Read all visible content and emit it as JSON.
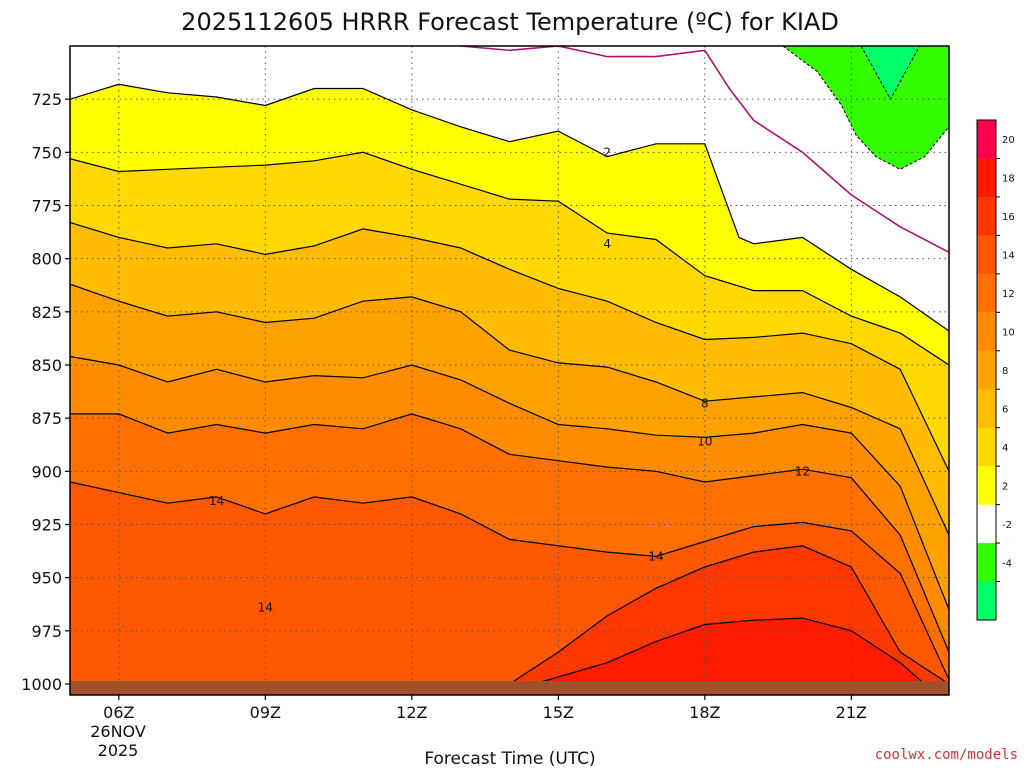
{
  "title": "2025112605 HRRR Forecast Temperature (ºC) for KIAD",
  "credit": "coolwx.com/models",
  "chart_data": {
    "type": "contour",
    "xlabel": "Forecast Time (UTC)",
    "x_date_label": [
      "26NOV",
      "2025"
    ],
    "x_ticks": [
      "06Z",
      "09Z",
      "12Z",
      "15Z",
      "18Z",
      "21Z"
    ],
    "x_hours": [
      6,
      9,
      12,
      15,
      18,
      21
    ],
    "x_range": [
      5,
      23
    ],
    "y_ticks": [
      725,
      750,
      775,
      800,
      825,
      850,
      875,
      900,
      925,
      950,
      975,
      1000
    ],
    "y_range": [
      1003,
      700
    ],
    "grid": true,
    "colorbar": {
      "labels": [
        "20",
        "18",
        "16",
        "14",
        "12",
        "10",
        "8",
        "6",
        "4",
        "2",
        "-2",
        "-4"
      ],
      "colors": [
        "#ff0050",
        "#ff1a00",
        "#ff3800",
        "#ff5800",
        "#ff7000",
        "#ff8c00",
        "#ffa200",
        "#ffbb00",
        "#ffd800",
        "#ffff00",
        "#ffffff",
        "#33ff00",
        "#00ff66"
      ]
    },
    "contour_labels": [
      {
        "text": "2",
        "hour": 16,
        "p": 750
      },
      {
        "text": "4",
        "hour": 16,
        "p": 793
      },
      {
        "text": "8",
        "hour": 18,
        "p": 868
      },
      {
        "text": "10",
        "hour": 18,
        "p": 886
      },
      {
        "text": "12",
        "hour": 20,
        "p": 900
      },
      {
        "text": "14",
        "hour": 8,
        "p": 914
      },
      {
        "text": "14",
        "hour": 17,
        "p": 940
      },
      {
        "text": "14",
        "hour": 9,
        "p": 964
      }
    ],
    "bands": [
      {
        "value": 18,
        "color": "#ff1a00",
        "boundary": [
          [
            14.5,
            1000
          ],
          [
            16,
            990
          ],
          [
            17,
            980
          ],
          [
            18,
            972
          ],
          [
            19,
            970
          ],
          [
            20,
            969
          ],
          [
            21,
            975
          ],
          [
            22,
            990
          ],
          [
            22.5,
            1000
          ]
        ]
      },
      {
        "value": 16,
        "color": "#ff3800",
        "boundary": [
          [
            14,
            1000
          ],
          [
            15,
            985
          ],
          [
            16,
            968
          ],
          [
            17,
            955
          ],
          [
            18,
            945
          ],
          [
            19,
            938
          ],
          [
            20,
            935
          ],
          [
            21,
            945
          ],
          [
            22,
            985
          ],
          [
            23,
            1000
          ]
        ]
      },
      {
        "value": 14,
        "color": "#ff5800",
        "boundary": [
          [
            5,
            905
          ],
          [
            6,
            910
          ],
          [
            7,
            915
          ],
          [
            8,
            912
          ],
          [
            9,
            920
          ],
          [
            10,
            912
          ],
          [
            11,
            915
          ],
          [
            12,
            912
          ],
          [
            13,
            920
          ],
          [
            14,
            932
          ],
          [
            15,
            935
          ],
          [
            16,
            938
          ],
          [
            17,
            940
          ],
          [
            18,
            933
          ],
          [
            19,
            926
          ],
          [
            20,
            924
          ],
          [
            21,
            928
          ],
          [
            22,
            948
          ],
          [
            23,
            998
          ]
        ]
      },
      {
        "value": 12,
        "color": "#ff7000",
        "boundary": [
          [
            5,
            873
          ],
          [
            6,
            873
          ],
          [
            7,
            882
          ],
          [
            8,
            878
          ],
          [
            9,
            882
          ],
          [
            10,
            878
          ],
          [
            11,
            880
          ],
          [
            12,
            873
          ],
          [
            13,
            880
          ],
          [
            14,
            892
          ],
          [
            15,
            895
          ],
          [
            16,
            898
          ],
          [
            17,
            900
          ],
          [
            18,
            905
          ],
          [
            19,
            902
          ],
          [
            20,
            899
          ],
          [
            21,
            903
          ],
          [
            22,
            930
          ],
          [
            23,
            985
          ]
        ]
      },
      {
        "value": 10,
        "color": "#ff8c00",
        "boundary": [
          [
            5,
            846
          ],
          [
            6,
            850
          ],
          [
            7,
            858
          ],
          [
            8,
            852
          ],
          [
            9,
            858
          ],
          [
            10,
            855
          ],
          [
            11,
            856
          ],
          [
            12,
            850
          ],
          [
            13,
            857
          ],
          [
            14,
            868
          ],
          [
            15,
            878
          ],
          [
            16,
            880
          ],
          [
            17,
            883
          ],
          [
            18,
            884
          ],
          [
            19,
            882
          ],
          [
            20,
            878
          ],
          [
            21,
            882
          ],
          [
            22,
            907
          ],
          [
            23,
            965
          ]
        ]
      },
      {
        "value": 8,
        "color": "#ffa200",
        "boundary": [
          [
            5,
            812
          ],
          [
            6,
            820
          ],
          [
            7,
            827
          ],
          [
            8,
            825
          ],
          [
            9,
            830
          ],
          [
            10,
            828
          ],
          [
            11,
            820
          ],
          [
            12,
            818
          ],
          [
            13,
            825
          ],
          [
            14,
            843
          ],
          [
            15,
            849
          ],
          [
            16,
            851
          ],
          [
            17,
            858
          ],
          [
            18,
            867
          ],
          [
            19,
            865
          ],
          [
            20,
            863
          ],
          [
            21,
            870
          ],
          [
            22,
            880
          ],
          [
            23,
            930
          ]
        ]
      },
      {
        "value": 6,
        "color": "#ffbb00",
        "boundary": [
          [
            5,
            783
          ],
          [
            6,
            790
          ],
          [
            7,
            795
          ],
          [
            8,
            793
          ],
          [
            9,
            798
          ],
          [
            10,
            794
          ],
          [
            11,
            786
          ],
          [
            12,
            790
          ],
          [
            13,
            795
          ],
          [
            14,
            805
          ],
          [
            15,
            814
          ],
          [
            16,
            820
          ],
          [
            17,
            830
          ],
          [
            18,
            838
          ],
          [
            19,
            837
          ],
          [
            20,
            835
          ],
          [
            21,
            840
          ],
          [
            22,
            852
          ],
          [
            23,
            900
          ]
        ]
      },
      {
        "value": 4,
        "color": "#ffd800",
        "boundary": [
          [
            5,
            753
          ],
          [
            6,
            759
          ],
          [
            7,
            758
          ],
          [
            8,
            757
          ],
          [
            9,
            756
          ],
          [
            10,
            754
          ],
          [
            11,
            750
          ],
          [
            12,
            758
          ],
          [
            13,
            765
          ],
          [
            14,
            772
          ],
          [
            15,
            773
          ],
          [
            16,
            788
          ],
          [
            17,
            791
          ],
          [
            18,
            808
          ],
          [
            19,
            815
          ],
          [
            20,
            815
          ],
          [
            21,
            827
          ],
          [
            22,
            835
          ],
          [
            23,
            850
          ]
        ]
      },
      {
        "value": 2,
        "color": "#ffff00",
        "boundary": [
          [
            5,
            725
          ],
          [
            6,
            718
          ],
          [
            7,
            722
          ],
          [
            8,
            724
          ],
          [
            9,
            728
          ],
          [
            10,
            720
          ],
          [
            11,
            720
          ],
          [
            12,
            730
          ],
          [
            13,
            738
          ],
          [
            14,
            745
          ],
          [
            15,
            740
          ],
          [
            16,
            752
          ],
          [
            17,
            746
          ],
          [
            18,
            746
          ],
          [
            18.7,
            790
          ],
          [
            19,
            793
          ],
          [
            20,
            790
          ],
          [
            21,
            805
          ],
          [
            22,
            818
          ],
          [
            23,
            834
          ]
        ]
      }
    ],
    "neg_region_points": [
      [
        19.6,
        700
      ],
      [
        20.3,
        712
      ],
      [
        20.8,
        728
      ],
      [
        21.1,
        742
      ],
      [
        21.5,
        752
      ],
      [
        22,
        758
      ],
      [
        22.5,
        752
      ],
      [
        23,
        738
      ],
      [
        23,
        700
      ]
    ],
    "neg_inner_points": [
      [
        21.2,
        700
      ],
      [
        21.8,
        725
      ],
      [
        22.4,
        700
      ]
    ],
    "zero_line": [
      [
        13,
        700
      ],
      [
        14,
        702
      ],
      [
        15,
        700
      ],
      [
        16,
        705
      ],
      [
        17,
        705
      ],
      [
        18,
        702
      ],
      [
        18.5,
        720
      ],
      [
        19,
        735
      ],
      [
        20,
        750
      ],
      [
        21,
        770
      ],
      [
        22,
        785
      ],
      [
        23,
        797
      ]
    ],
    "ground_p": 1000
  }
}
